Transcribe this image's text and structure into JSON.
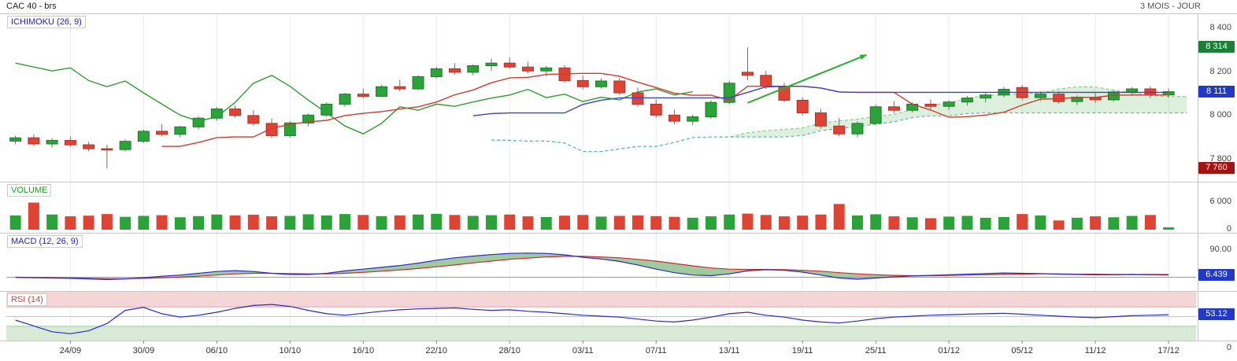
{
  "header": {
    "title": "CAC 40 - brs",
    "timeframe": "3 MOIS - JOUR"
  },
  "panels": {
    "main": {
      "indicator_label": "ICHIMOKU (26, 9)",
      "y_ticks": [
        {
          "label": "8 400",
          "value": 8400
        },
        {
          "label": "8 200",
          "value": 8200
        },
        {
          "label": "8 000",
          "value": 8000
        },
        {
          "label": "7 800",
          "value": 7800
        }
      ],
      "badges": [
        {
          "name": "period-high",
          "label": "8 314",
          "value": 8314,
          "color": "#1b7f35"
        },
        {
          "name": "last-price",
          "label": "8 111",
          "value": 8111,
          "color": "#2239c8"
        },
        {
          "name": "period-low",
          "label": "7 760",
          "value": 7760,
          "color": "#a31313"
        }
      ]
    },
    "volume": {
      "indicator_label": "VOLUME",
      "y_ticks": [
        {
          "label": "6 000",
          "value": 6000
        },
        {
          "label": "0",
          "value": 0
        }
      ]
    },
    "macd": {
      "indicator_label": "MACD (12, 26, 9)",
      "y_ticks": [
        {
          "label": "90.00",
          "value": 90
        },
        {
          "label": "0",
          "value": 0
        }
      ],
      "badge": {
        "label": "6.439",
        "value": 6.439,
        "color": "#2239c8"
      }
    },
    "rsi": {
      "indicator_label": "RSI (14)",
      "badge": {
        "label": "53.12",
        "value": 53.12,
        "color": "#2239c8"
      },
      "bands": {
        "overbought": 70,
        "mid": 50,
        "oversold": 30
      },
      "zero_label": "0"
    }
  },
  "x_axis": {
    "labels": [
      "24/09",
      "30/09",
      "06/10",
      "10/10",
      "16/10",
      "22/10",
      "28/10",
      "03/11",
      "07/11",
      "13/11",
      "19/11",
      "25/11",
      "01/12",
      "05/12",
      "11/12",
      "17/12"
    ],
    "label_indices": [
      3,
      7,
      11,
      15,
      19,
      23,
      27,
      31,
      35,
      39,
      43,
      47,
      51,
      55,
      59,
      63
    ]
  },
  "colors": {
    "candle_up": "#2aa338",
    "candle_up_border": "#1d7c2a",
    "candle_down": "#df4333",
    "candle_down_border": "#b03226",
    "wick": "#707070",
    "tenkan": "#d23a2e",
    "kijun": "#3b43cf",
    "chikou": "#2f9e32",
    "senkou_a": "#7bc87b",
    "senkou_b": "#3fb3a0",
    "cloud": "rgba(120,190,120,0.25)",
    "macd_line": "#2a2ad0",
    "macd_signal": "#cf2a2a",
    "macd_hist": "rgba(96,169,96,0.6)",
    "rsi_line": "#2a2ad0",
    "rsi_overbought": "#f6d5d8",
    "rsi_oversold": "#d9ead6",
    "volume_up": "#2aa338",
    "volume_down": "#df4333",
    "grid": "#ebebeb",
    "separator": "#c9c9c9",
    "axis_text": "#555555",
    "arrow": "#2fae2f"
  },
  "chart_data": {
    "type": "candlestick+indicators",
    "title": "CAC 40 - brs",
    "timeframe": "3 MOIS - JOUR",
    "price_axis": {
      "min": 7710,
      "max": 8430
    },
    "ichimoku_params": {
      "tenkan": 9,
      "kijun": 26,
      "displacement": 26
    },
    "ohlc": [
      [
        7885,
        7910,
        7870,
        7900
      ],
      [
        7900,
        7915,
        7862,
        7872
      ],
      [
        7872,
        7898,
        7855,
        7888
      ],
      [
        7888,
        7905,
        7860,
        7868
      ],
      [
        7868,
        7882,
        7838,
        7850
      ],
      [
        7850,
        7868,
        7760,
        7846
      ],
      [
        7846,
        7892,
        7838,
        7884
      ],
      [
        7884,
        7938,
        7876,
        7930
      ],
      [
        7930,
        7962,
        7906,
        7916
      ],
      [
        7916,
        7956,
        7902,
        7950
      ],
      [
        7950,
        7998,
        7938,
        7990
      ],
      [
        7990,
        8042,
        7978,
        8032
      ],
      [
        8032,
        8048,
        7992,
        8002
      ],
      [
        8002,
        8026,
        7956,
        7966
      ],
      [
        7966,
        7988,
        7898,
        7910
      ],
      [
        7910,
        7976,
        7902,
        7968
      ],
      [
        7968,
        8012,
        7952,
        8004
      ],
      [
        8004,
        8062,
        7996,
        8054
      ],
      [
        8054,
        8106,
        8042,
        8100
      ],
      [
        8100,
        8126,
        8080,
        8090
      ],
      [
        8090,
        8142,
        8086,
        8134
      ],
      [
        8134,
        8166,
        8112,
        8124
      ],
      [
        8124,
        8186,
        8118,
        8180
      ],
      [
        8180,
        8226,
        8172,
        8216
      ],
      [
        8216,
        8242,
        8190,
        8200
      ],
      [
        8200,
        8236,
        8186,
        8230
      ],
      [
        8230,
        8262,
        8206,
        8242
      ],
      [
        8242,
        8268,
        8216,
        8224
      ],
      [
        8224,
        8246,
        8196,
        8206
      ],
      [
        8206,
        8230,
        8182,
        8220
      ],
      [
        8220,
        8232,
        8152,
        8162
      ],
      [
        8162,
        8186,
        8122,
        8134
      ],
      [
        8134,
        8172,
        8126,
        8160
      ],
      [
        8160,
        8174,
        8096,
        8106
      ],
      [
        8106,
        8130,
        8042,
        8054
      ],
      [
        8054,
        8076,
        7992,
        8004
      ],
      [
        8004,
        8030,
        7962,
        7976
      ],
      [
        7976,
        8006,
        7958,
        7996
      ],
      [
        7996,
        8072,
        7988,
        8062
      ],
      [
        8062,
        8162,
        8054,
        8150
      ],
      [
        8200,
        8314,
        8164,
        8186
      ],
      [
        8186,
        8206,
        8124,
        8136
      ],
      [
        8136,
        8152,
        8062,
        8072
      ],
      [
        8072,
        8086,
        8002,
        8014
      ],
      [
        8014,
        8032,
        7942,
        7954
      ],
      [
        7954,
        7992,
        7906,
        7918
      ],
      [
        7918,
        7976,
        7902,
        7966
      ],
      [
        7966,
        8052,
        7958,
        8042
      ],
      [
        8042,
        8068,
        8012,
        8026
      ],
      [
        8026,
        8062,
        8016,
        8054
      ],
      [
        8054,
        8076,
        8030,
        8044
      ],
      [
        8044,
        8072,
        8028,
        8064
      ],
      [
        8064,
        8092,
        8048,
        8082
      ],
      [
        8082,
        8106,
        8062,
        8096
      ],
      [
        8096,
        8132,
        8086,
        8122
      ],
      [
        8130,
        8142,
        8072,
        8084
      ],
      [
        8084,
        8112,
        8068,
        8100
      ],
      [
        8100,
        8114,
        8056,
        8066
      ],
      [
        8066,
        8094,
        8050,
        8086
      ],
      [
        8086,
        8104,
        8060,
        8074
      ],
      [
        8074,
        8116,
        8066,
        8110
      ],
      [
        8110,
        8132,
        8092,
        8124
      ],
      [
        8124,
        8136,
        8082,
        8096
      ],
      [
        8096,
        8126,
        8084,
        8111
      ]
    ],
    "volume": {
      "max_axis": 6000,
      "values": [
        3100,
        5900,
        3300,
        2900,
        3050,
        3400,
        2800,
        3000,
        3150,
        2700,
        2950,
        3300,
        3100,
        3250,
        2900,
        3000,
        3350,
        3100,
        3400,
        3200,
        2950,
        3100,
        3300,
        3450,
        3200,
        3000,
        3150,
        3300,
        2900,
        2750,
        3050,
        3200,
        2850,
        3000,
        3100,
        2950,
        2800,
        2600,
        2900,
        3300,
        3500,
        3200,
        2900,
        3050,
        3300,
        5600,
        3100,
        3350,
        2900,
        2700,
        2500,
        2850,
        3000,
        2600,
        2750,
        3400,
        3100,
        2000,
        2600,
        2900,
        2700,
        3000,
        3200,
        500
      ]
    },
    "macd": {
      "line": [
        -2,
        -3,
        -4,
        -5,
        -7,
        -9,
        -7,
        -3,
        2,
        6,
        12,
        18,
        21,
        18,
        12,
        8,
        8,
        12,
        20,
        26,
        32,
        38,
        46,
        56,
        64,
        70,
        75,
        79,
        80,
        79,
        74,
        66,
        60,
        52,
        40,
        26,
        14,
        6,
        4,
        10,
        20,
        24,
        22,
        16,
        6,
        -4,
        -8,
        -4,
        0,
        3,
        5,
        7,
        9,
        11,
        13,
        12,
        11,
        9,
        8,
        7,
        7,
        8,
        7,
        6.439
      ],
      "signal": [
        -1,
        -2,
        -3,
        -4,
        -5,
        -6,
        -6,
        -5,
        -3,
        -1,
        2,
        6,
        10,
        12,
        12,
        11,
        10,
        10,
        12,
        15,
        19,
        23,
        28,
        34,
        40,
        47,
        53,
        59,
        63,
        67,
        69,
        69,
        67,
        64,
        59,
        53,
        45,
        37,
        30,
        26,
        25,
        25,
        24,
        22,
        19,
        14,
        10,
        7,
        5,
        4,
        4,
        5,
        6,
        7,
        8,
        9,
        10,
        10,
        9,
        9,
        8,
        8,
        8,
        8
      ]
    },
    "rsi": [
      42,
      30,
      18,
      14,
      20,
      35,
      62,
      68,
      55,
      48,
      52,
      58,
      66,
      72,
      74,
      70,
      62,
      55,
      52,
      56,
      60,
      63,
      65,
      66,
      67,
      64,
      62,
      63,
      60,
      58,
      55,
      52,
      50,
      48,
      44,
      40,
      38,
      42,
      48,
      55,
      58,
      52,
      48,
      42,
      38,
      36,
      40,
      45,
      48,
      50,
      52,
      53,
      54,
      55,
      56,
      54,
      52,
      50,
      48,
      47,
      49,
      51,
      52,
      53.12
    ],
    "annotation_arrow": {
      "from_index": 40,
      "from_price": 8060,
      "to_index": 46.5,
      "to_price": 8280
    }
  }
}
